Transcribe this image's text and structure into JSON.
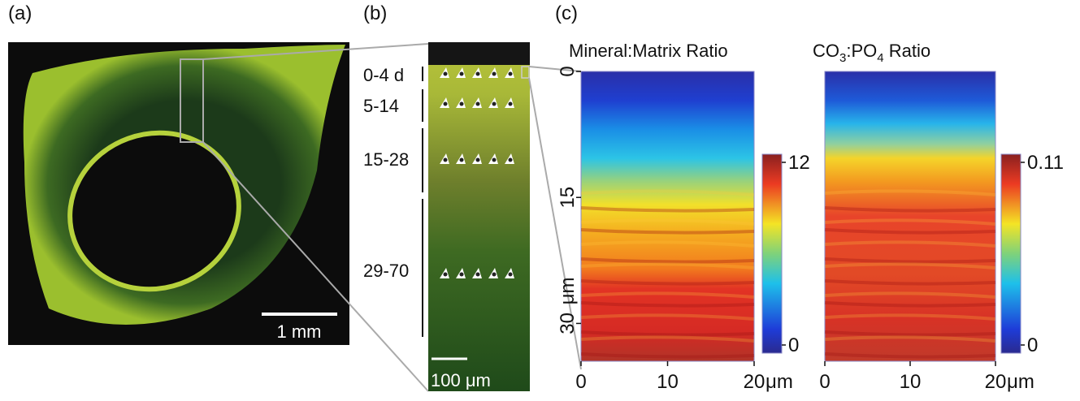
{
  "panels": [
    {
      "label": "(a)",
      "scale_bar": "1 mm"
    },
    {
      "label": "(b)",
      "scale_bar": "100 μm",
      "age_groups": [
        "0-4 d",
        "5-14",
        "15-28",
        "29-70"
      ]
    },
    {
      "label": "(c)"
    }
  ],
  "heatmaps": [
    {
      "title": [
        "Mineral:Matrix Ratio"
      ],
      "xlim": [
        0,
        20
      ],
      "xticks": [
        0,
        10,
        20
      ],
      "x_unit": "μm",
      "ylim": [
        0,
        34.5
      ],
      "yticks": [
        0,
        15,
        30
      ],
      "y_unit": "μm",
      "clim": [
        0,
        12
      ],
      "cticks": [
        0,
        12
      ]
    },
    {
      "title": [
        "CO",
        "3",
        ":PO",
        "4",
        " Ratio"
      ],
      "xlim": [
        0,
        20
      ],
      "xticks": [
        0,
        10,
        20
      ],
      "x_unit": "μm",
      "clim": [
        0,
        0.11
      ],
      "cticks": [
        0,
        0.11
      ]
    }
  ]
}
